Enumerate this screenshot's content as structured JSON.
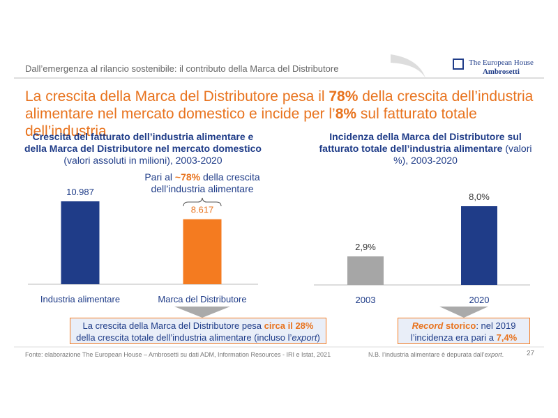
{
  "header": {
    "breadcrumb": "Dall’emergenza al rilancio sostenibile: il contributo della Marca del Distributore",
    "logo": [
      "The European House",
      "Ambrosetti"
    ]
  },
  "headline": [
    [
      "La crescita della Marca del Distributore pesa il ",
      "78%",
      " della crescita dell’industria"
    ],
    [
      "alimentare nel mercato domestico e incide per l’",
      "8%",
      " sul fatturato totale dell’industria"
    ]
  ],
  "chart_data": [
    {
      "type": "bar",
      "title": [
        "Crescita del fatturato dell’industria alimentare e della Marca del Distributore nel mercato domestico",
        " (valori assoluti in milioni), 2003-2020"
      ],
      "categories": [
        "Industria alimentare",
        "Marca del Distributore"
      ],
      "values": [
        10987,
        8617
      ],
      "value_labels": [
        "10.987",
        "8.617"
      ],
      "colors": [
        "#1f3c88",
        "#f47b20"
      ],
      "annotation": [
        "Pari al ",
        "~78%",
        " della crescita dell’industria alimentare"
      ],
      "callout": [
        "La crescita della Marca del Distributore pesa ",
        "circa il 28%",
        " della crescita totale dell’industria alimentare (incluso l’",
        "export",
        ")"
      ]
    },
    {
      "type": "bar",
      "title": [
        "Incidenza della Marca del Distributore sul fatturato totale dell’industria alimentare",
        " (valori %), 2003-2020"
      ],
      "categories": [
        "2003",
        "2020"
      ],
      "values": [
        2.9,
        8.0
      ],
      "value_labels": [
        "2,9%",
        "8,0%"
      ],
      "colors": [
        "#a6a6a6",
        "#1f3c88"
      ],
      "callout": [
        "Record",
        " storico",
        ": nel 2019 l’incidenza era pari a ",
        "7,4%"
      ]
    }
  ],
  "footer": {
    "source": "Fonte: elaborazione The European House – Ambrosetti su dati ADM, Information Resources - IRI e Istat, 2021",
    "note": [
      "N.B. l’industria alimentare è depurata dall’",
      "export",
      "."
    ],
    "page": "27"
  }
}
